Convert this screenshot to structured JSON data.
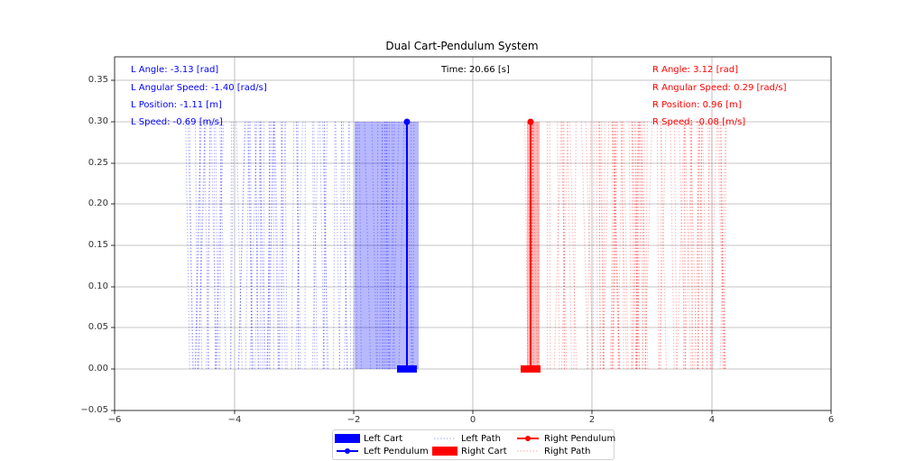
{
  "chart_data": {
    "type": "line",
    "title": "Dual Cart-Pendulum System",
    "xlabel": "",
    "ylabel": "",
    "xlim": [
      -6,
      6
    ],
    "ylim": [
      -0.05,
      0.38
    ],
    "grid": true,
    "x_ticks": [
      "−6",
      "−4",
      "−2",
      "0",
      "2",
      "4",
      "6"
    ],
    "y_ticks": [
      "−0.05",
      "0.00",
      "0.05",
      "0.10",
      "0.15",
      "0.20",
      "0.25",
      "0.30",
      "0.35"
    ],
    "legend_position": "lower center (below axes)",
    "series": [
      {
        "name": "Left Cart",
        "kind": "rectangle",
        "color": "#0000ff",
        "x_center": -1.11,
        "width": 0.34,
        "y": 0.0
      },
      {
        "name": "Left Pendulum",
        "kind": "line-marker",
        "color": "#0000ff",
        "x": [
          -1.11,
          -1.11
        ],
        "y": [
          0.0,
          0.3
        ]
      },
      {
        "name": "Left Path",
        "kind": "dotted-trace",
        "color": "#0000ff",
        "alpha": 0.3,
        "x_range": [
          -4.75,
          -0.92
        ],
        "y_range": [
          0.0,
          0.3
        ],
        "dense_range": [
          -2.0,
          -0.92
        ]
      },
      {
        "name": "Right Cart",
        "kind": "rectangle",
        "color": "#ff0000",
        "x_center": 0.96,
        "width": 0.34,
        "y": 0.0
      },
      {
        "name": "Right Pendulum",
        "kind": "line-marker",
        "color": "#ff0000",
        "x": [
          0.96,
          0.96
        ],
        "y": [
          0.0,
          0.3
        ]
      },
      {
        "name": "Right Path",
        "kind": "dotted-trace",
        "color": "#ff0000",
        "alpha": 0.3,
        "x_range": [
          0.9,
          4.33
        ],
        "y_range": [
          0.0,
          0.3
        ],
        "dense_range": [
          0.9,
          1.1
        ]
      }
    ],
    "annotations": {
      "time": "Time: 20.66 [s]",
      "left": [
        "L Angle: -3.13 [rad]",
        "L Angular Speed: -1.40 [rad/s]",
        "L Position: -1.11 [m]",
        "L Speed: -0.69 [m/s]"
      ],
      "right": [
        "R Angle: 3.12 [rad]",
        "R Angular Speed: 0.29 [rad/s]",
        "R Position: 0.96 [m]",
        "R Speed: -0.08 [m/s]"
      ]
    }
  },
  "title": "Dual Cart-Pendulum System",
  "time_label": "Time: 20.66 [s]",
  "left_info": {
    "angle": "L Angle: -3.13 [rad]",
    "angular_speed": "L Angular Speed: -1.40 [rad/s]",
    "position": "L Position: -1.11 [m]",
    "speed": "L Speed: -0.69 [m/s]"
  },
  "right_info": {
    "angle": "R Angle: 3.12 [rad]",
    "angular_speed": "R Angular Speed: 0.29 [rad/s]",
    "position": "R Position: 0.96 [m]",
    "speed": "R Speed: -0.08 [m/s]"
  },
  "axes": {
    "x_ticks": [
      "−6",
      "−4",
      "−2",
      "0",
      "2",
      "4",
      "6"
    ],
    "y_ticks": [
      "0.35",
      "0.30",
      "0.25",
      "0.20",
      "0.15",
      "0.10",
      "0.05",
      "0.00",
      "−0.05"
    ]
  },
  "legend": {
    "left_cart": "Left Cart",
    "left_pendulum": "Left Pendulum",
    "left_path": "Left Path",
    "right_cart": "Right Cart",
    "right_pendulum": "Right Pendulum",
    "right_path": "Right Path"
  },
  "colors": {
    "left": "#0000ff",
    "right": "#ff0000",
    "grid": "#b0b0b0"
  }
}
